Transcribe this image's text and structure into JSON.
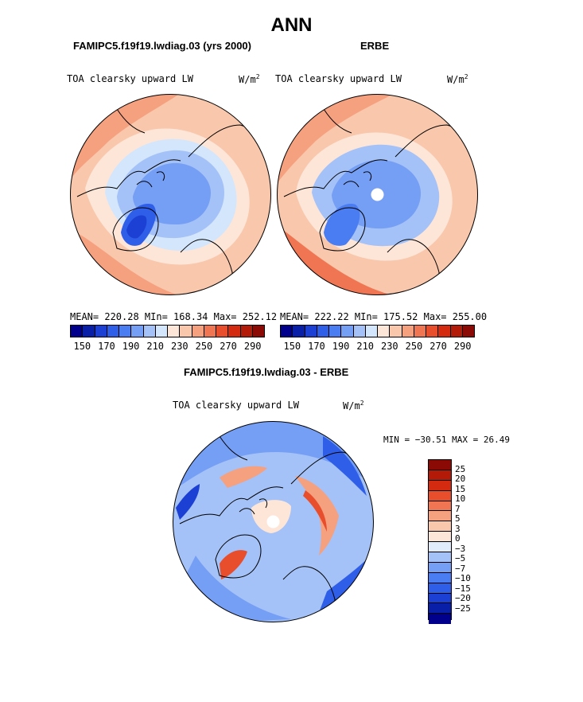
{
  "page_title": "ANN",
  "colors": {
    "scale": [
      "#00008c",
      "#0a1fa8",
      "#1c3fd4",
      "#2f5fe8",
      "#4a7cf2",
      "#759ef5",
      "#a4c2f7",
      "#d4e6fc",
      "#fde6d8",
      "#f9c7ab",
      "#f5a07f",
      "#f07552",
      "#e84e2c",
      "#d42a10",
      "#b31a08",
      "#8c0a05"
    ],
    "diff_scale": [
      "#8c0a05",
      "#b31a08",
      "#d42a10",
      "#e84e2c",
      "#f07552",
      "#f5a07f",
      "#f9c7ab",
      "#fde6d8",
      "#e0ebfc",
      "#a4c2f7",
      "#759ef5",
      "#4a7cf2",
      "#2f5fe8",
      "#1c3fd4",
      "#0a1fa8",
      "#00008c"
    ]
  },
  "chart_data": [
    {
      "type": "heatmap",
      "id": "model",
      "case_title": "FAMIPC5.f19f19.lwdiag.03 (yrs 2000)",
      "variable": "TOA clearsky upward LW",
      "units": "W/m",
      "units_exp": "2",
      "stats": "MEAN= 220.28   MIn= 168.34   Max= 252.12",
      "mean": 220.28,
      "min": 168.34,
      "max": 252.12,
      "colorbar_ticks": [
        "150",
        "170",
        "190",
        "210",
        "230",
        "250",
        "270",
        "290"
      ],
      "projection": "polar stereographic, north pole"
    },
    {
      "type": "heatmap",
      "id": "obs",
      "case_title": "ERBE",
      "variable": "TOA clearsky upward LW",
      "units": "W/m",
      "units_exp": "2",
      "stats": "MEAN= 222.22   MIn= 175.52   Max= 255.00",
      "mean": 222.22,
      "min": 175.52,
      "max": 255.0,
      "colorbar_ticks": [
        "150",
        "170",
        "190",
        "210",
        "230",
        "250",
        "270",
        "290"
      ],
      "projection": "polar stereographic, north pole"
    },
    {
      "type": "heatmap",
      "id": "diff",
      "case_title": "FAMIPC5.f19f19.lwdiag.03 - ERBE",
      "variable": "TOA clearsky upward LW",
      "units": "W/m",
      "units_exp": "2",
      "stats": "MIN = −30.51  MAX =   26.49",
      "min": -30.51,
      "max": 26.49,
      "colorbar_ticks": [
        "25",
        "20",
        "15",
        "10",
        "7",
        "5",
        "3",
        "0",
        "−3",
        "−5",
        "−7",
        "−10",
        "−15",
        "−20",
        "−25"
      ],
      "projection": "polar stereographic, north pole"
    }
  ]
}
